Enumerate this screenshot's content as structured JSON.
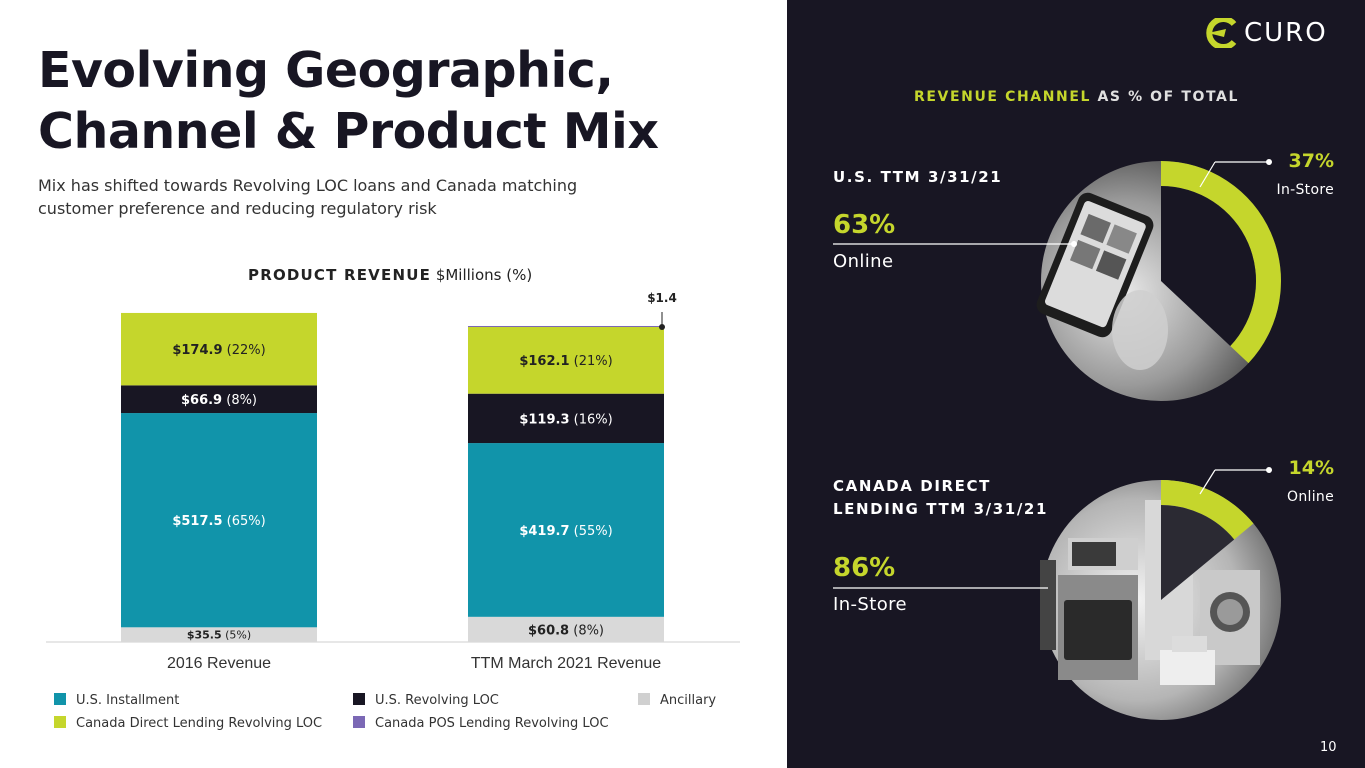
{
  "header": {
    "title_line1": "Evolving Geographic,",
    "title_line2": "Channel & Product Mix",
    "subtitle_line1": "Mix has shifted towards Revolving LOC loans and Canada matching",
    "subtitle_line2": "customer preference and reducing regulatory risk"
  },
  "chart_data": {
    "type": "bar",
    "stacked": true,
    "title": "PRODUCT REVENUE",
    "title_units": "$Millions (%)",
    "categories": [
      "2016 Revenue",
      "TTM March 2021 Revenue"
    ],
    "series": [
      {
        "name": "Ancillary",
        "color": "#d9d9d9",
        "values": [
          35.5,
          60.8
        ],
        "labels": [
          "$35.5",
          "$60.8"
        ],
        "pcts": [
          "(5%)",
          "(8%)"
        ],
        "label_color": "#222222"
      },
      {
        "name": "U.S. Installment",
        "color": "#1194aa",
        "values": [
          517.5,
          419.7
        ],
        "labels": [
          "$517.5",
          "$419.7"
        ],
        "pcts": [
          "(65%)",
          "(55%)"
        ],
        "label_color": "#ffffff"
      },
      {
        "name": "U.S. Revolving LOC",
        "color": "#181623",
        "values": [
          66.9,
          119.3
        ],
        "labels": [
          "$66.9",
          "$119.3"
        ],
        "pcts": [
          "(8%)",
          "(16%)"
        ],
        "label_color": "#ffffff"
      },
      {
        "name": "Canada Direct Lending Revolving LOC",
        "color": "#c5d62c",
        "values": [
          174.9,
          162.1
        ],
        "labels": [
          "$174.9",
          "$162.1"
        ],
        "pcts": [
          "(22%)",
          "(21%)"
        ],
        "label_color": "#222222"
      },
      {
        "name": "Canada POS Lending Revolving LOC",
        "color": "#7b68b5",
        "values": [
          0,
          1.4
        ],
        "labels": [
          "",
          "$1.4"
        ],
        "pcts": [
          "",
          ""
        ],
        "label_color": "#222222"
      }
    ],
    "ylim": [
      0,
      800
    ],
    "legend": [
      "U.S. Installment",
      "U.S. Revolving LOC",
      "Ancillary",
      "Canada Direct Lending Revolving LOC",
      "Canada POS Lending Revolving LOC"
    ]
  },
  "logo": {
    "text": "CURO"
  },
  "revenue_channel": {
    "title_highlight": "REVENUE CHANNEL",
    "title_rest": " AS % OF TOTAL",
    "us": {
      "label": "U.S. TTM 3/31/21",
      "main_pct": "63%",
      "main_label": "Online",
      "main_value": 63,
      "side_pct": "37%",
      "side_label": "In-Store",
      "side_value": 37
    },
    "canada": {
      "label_line1": "CANADA DIRECT",
      "label_line2": "LENDING TTM 3/31/21",
      "main_pct": "86%",
      "main_label": "In-Store",
      "main_value": 86,
      "side_pct": "14%",
      "side_label": "Online",
      "side_value": 14
    }
  },
  "colors": {
    "accent": "#c5d62c",
    "dark": "#181623",
    "teal": "#1194aa",
    "grey": "#d9d9d9"
  },
  "page_number": "10"
}
